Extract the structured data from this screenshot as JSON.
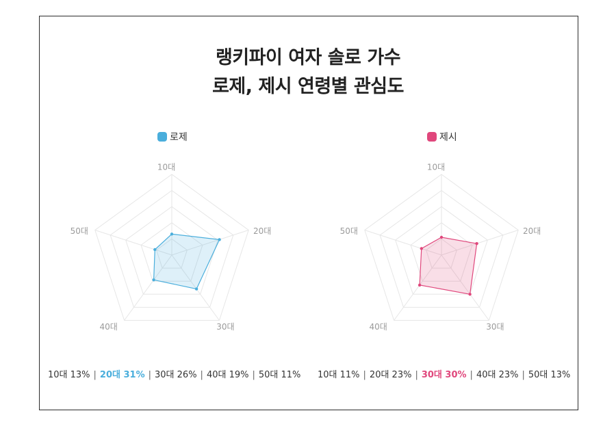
{
  "title": {
    "line1": "랭키파이 여자 솔로 가수",
    "line2": "로제, 제시 연령별 관심도"
  },
  "colors": {
    "rose": "#4aaedc",
    "jessi": "#e0477c",
    "grid": "#e6e6e6",
    "axis_text": "#9a9a9a"
  },
  "chart_data": [
    {
      "type": "radar",
      "series_name": "로제",
      "categories": [
        "10대",
        "20대",
        "30대",
        "40대",
        "50대"
      ],
      "values": [
        13,
        31,
        26,
        19,
        11
      ],
      "summary": [
        {
          "label": "10대 13%",
          "highlight": false
        },
        {
          "label": "20대 31%",
          "highlight": true
        },
        {
          "label": "30대 26%",
          "highlight": false
        },
        {
          "label": "40대 19%",
          "highlight": false
        },
        {
          "label": "50대 11%",
          "highlight": false
        }
      ]
    },
    {
      "type": "radar",
      "series_name": "제시",
      "categories": [
        "10대",
        "20대",
        "30대",
        "40대",
        "50대"
      ],
      "values": [
        11,
        23,
        30,
        23,
        13
      ],
      "summary": [
        {
          "label": "10대 11%",
          "highlight": false
        },
        {
          "label": "20대 23%",
          "highlight": false
        },
        {
          "label": "30대 30%",
          "highlight": true
        },
        {
          "label": "40대 23%",
          "highlight": false
        },
        {
          "label": "50대 13%",
          "highlight": false
        }
      ]
    }
  ]
}
